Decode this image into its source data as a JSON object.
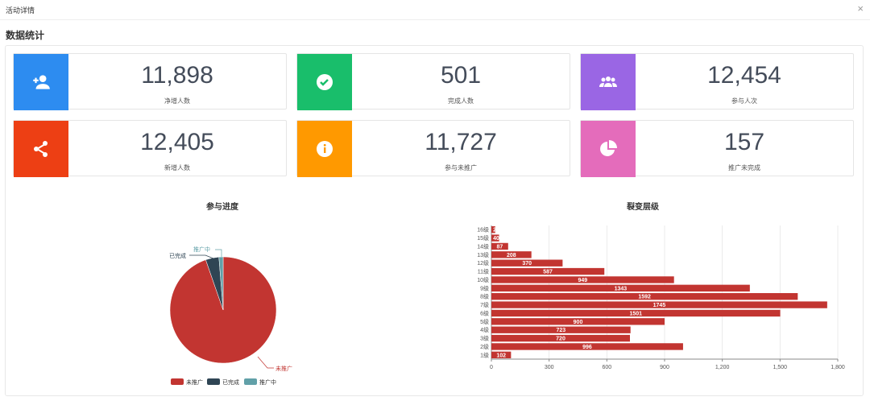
{
  "window": {
    "title": "活动详情",
    "close": "×"
  },
  "section_title": "数据统计",
  "cards": [
    {
      "value": "11,898",
      "label": "净增人数",
      "color": "#2d8cf0",
      "icon": "add-user-icon"
    },
    {
      "value": "501",
      "label": "完成人数",
      "color": "#19be6b",
      "icon": "check-circle-icon"
    },
    {
      "value": "12,454",
      "label": "参与人次",
      "color": "#9a66e4",
      "icon": "group-icon"
    },
    {
      "value": "12,405",
      "label": "新增人数",
      "color": "#ed3f14",
      "icon": "share-icon"
    },
    {
      "value": "11,727",
      "label": "参与未推广",
      "color": "#ff9900",
      "icon": "info-icon"
    },
    {
      "value": "157",
      "label": "推广未完成",
      "color": "#e46cbb",
      "icon": "pie-chart-icon"
    }
  ],
  "chart_data": [
    {
      "type": "pie",
      "title": "参与进度",
      "labels": [
        "未推广",
        "已完成",
        "推广中"
      ],
      "values": [
        11727,
        501,
        157
      ],
      "colors": [
        "#c23531",
        "#2f4554",
        "#61a0a8"
      ],
      "legend": "bottom"
    },
    {
      "type": "bar",
      "orientation": "horizontal",
      "title": "裂变层级",
      "categories": [
        "1级",
        "2级",
        "3级",
        "4级",
        "5级",
        "6级",
        "7级",
        "8级",
        "9级",
        "10级",
        "11级",
        "12级",
        "13级",
        "14级",
        "15级",
        "16级"
      ],
      "values": [
        102,
        996,
        720,
        723,
        900,
        1501,
        1745,
        1592,
        1343,
        949,
        587,
        370,
        208,
        87,
        40,
        20
      ],
      "xticks": [
        "0",
        "300",
        "600",
        "900",
        "1,200",
        "1,500",
        "1,800"
      ],
      "xlim": [
        0,
        1800
      ],
      "color": "#c23531",
      "grid": true
    }
  ]
}
